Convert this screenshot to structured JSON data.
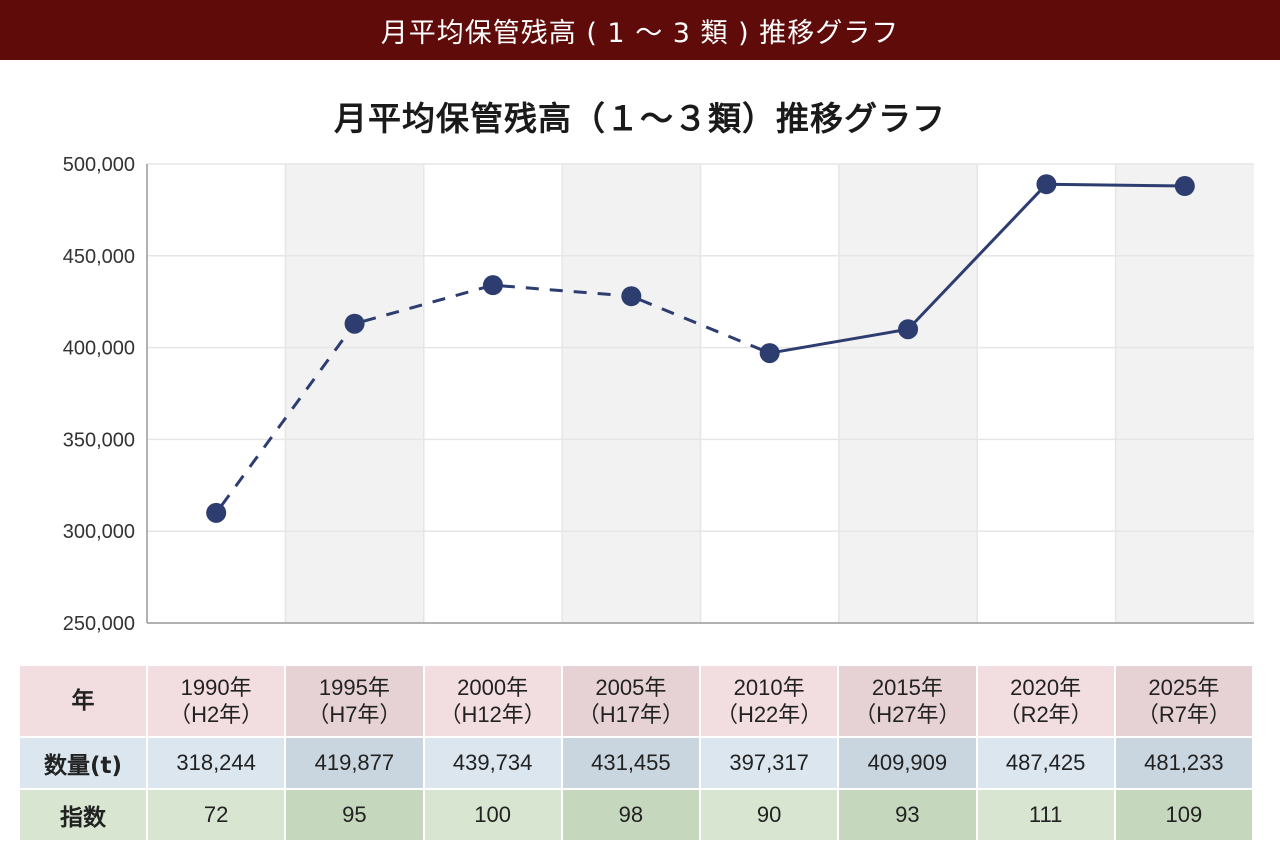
{
  "header": {
    "title": "月平均保管残高 ( 1 ～ 3 類 ) 推移グラフ"
  },
  "chart_data": {
    "type": "line",
    "title": "月平均保管残高（１～３類）推移グラフ",
    "categories": [
      "1990年（H2年）",
      "1995年（H7年）",
      "2000年（H12年）",
      "2005年（H17年）",
      "2010年（H22年）",
      "2015年（H27年）",
      "2020年（R2年）",
      "2025年（R7年）"
    ],
    "series": [
      {
        "values": [
          310000,
          413000,
          434000,
          428000,
          397000,
          410000,
          489000,
          488000
        ]
      }
    ],
    "line_style": "dashed from 1990 to 2010, solid from 2010 to 2025",
    "ylim": [
      250000,
      500000
    ],
    "yticks": [
      "500,000",
      "450,000",
      "400,000",
      "350,000",
      "300,000",
      "250,000"
    ],
    "ytick_values": [
      500000,
      450000,
      400000,
      350000,
      300000,
      250000
    ],
    "grid": true,
    "colors": {
      "line": "#2e3d70",
      "band": "#f2f2f2",
      "grid": "#e6e6e6"
    }
  },
  "table": {
    "year_label": "年",
    "qty_label": "数量(t)",
    "index_label": "指数",
    "years": [
      {
        "line1": "1990年",
        "line2": "（H2年）"
      },
      {
        "line1": "1995年",
        "line2": "（H7年）"
      },
      {
        "line1": "2000年",
        "line2": "（H12年）"
      },
      {
        "line1": "2005年",
        "line2": "（H17年）"
      },
      {
        "line1": "2010年",
        "line2": "（H22年）"
      },
      {
        "line1": "2015年",
        "line2": "（H27年）"
      },
      {
        "line1": "2020年",
        "line2": "（R2年）"
      },
      {
        "line1": "2025年",
        "line2": "（R7年）"
      }
    ],
    "quantities": [
      "318,244",
      "419,877",
      "439,734",
      "431,455",
      "397,317",
      "409,909",
      "487,425",
      "481,233"
    ],
    "indices": [
      "72",
      "95",
      "100",
      "98",
      "90",
      "93",
      "111",
      "109"
    ]
  }
}
